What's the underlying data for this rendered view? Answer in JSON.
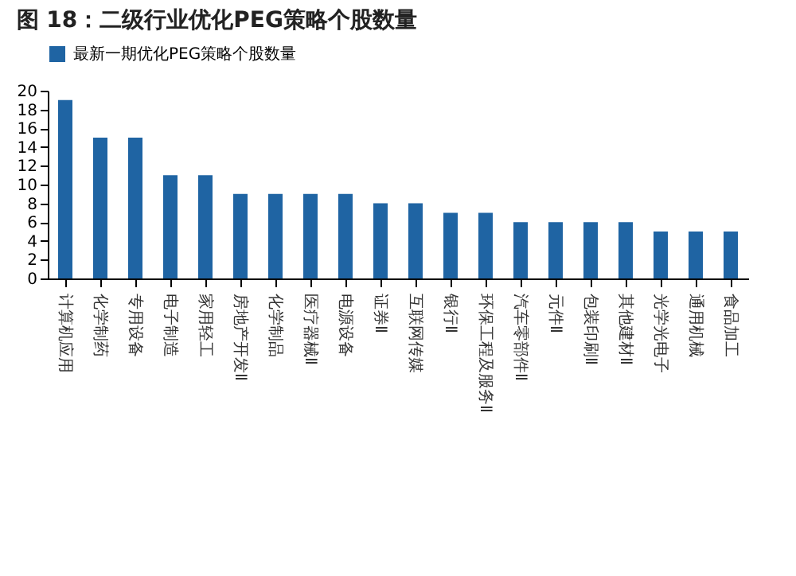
{
  "chart_data": {
    "type": "bar",
    "title": "图 18：二级行业优化PEG策略个股数量",
    "categories": [
      "计算机应用",
      "化学制药",
      "专用设备",
      "电子制造",
      "家用轻工",
      "房地产开发Ⅱ",
      "化学制品",
      "医疗器械Ⅱ",
      "电源设备",
      "证券Ⅱ",
      "互联网传媒",
      "银行Ⅱ",
      "环保工程及服务Ⅱ",
      "汽车零部件Ⅱ",
      "元件Ⅱ",
      "包装印刷Ⅱ",
      "其他建材Ⅱ",
      "光学光电子",
      "通用机械",
      "食品加工"
    ],
    "series": [
      {
        "name": "最新一期优化PEG策略个股数量",
        "color": "#1f64a3",
        "values": [
          19,
          15,
          15,
          11,
          11,
          9,
          9,
          9,
          9,
          8,
          8,
          7,
          7,
          6,
          6,
          6,
          6,
          5,
          5,
          5
        ]
      }
    ],
    "ylim": [
      0,
      20
    ],
    "yticks": [
      0,
      2,
      4,
      6,
      8,
      10,
      12,
      14,
      16,
      18,
      20
    ],
    "grid": false,
    "legend": "top"
  }
}
